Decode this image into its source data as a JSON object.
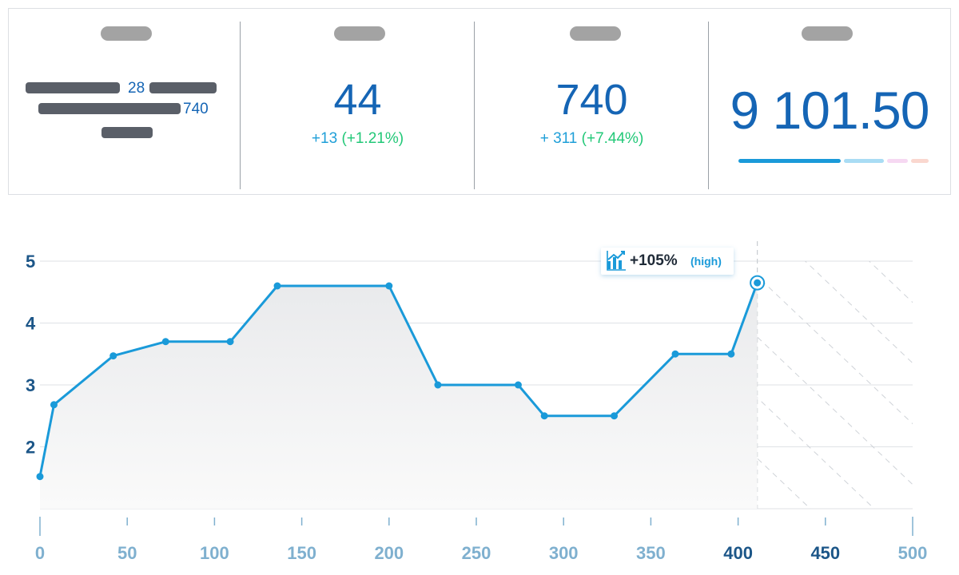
{
  "stats": {
    "funnel": {
      "value_a": "28",
      "value_b": "740"
    },
    "metric_2": {
      "value": "44",
      "delta_abs": "+13",
      "delta_pct": "(+1.21%)"
    },
    "metric_3": {
      "value": "740",
      "delta_abs": "+ 311",
      "delta_pct": "(+7.44%)"
    },
    "metric_4": {
      "value": "9 101.50"
    }
  },
  "callout": {
    "change": "+105%",
    "tag": "(high)",
    "icon": "chart-up-icon"
  },
  "colors": {
    "line": "#1a9ad9",
    "axis_dark": "#1c5688",
    "axis_light": "#7fb0cf",
    "value_blue": "#1565b5",
    "positive": "#22c878"
  },
  "chart_data": {
    "type": "area",
    "x": [
      0,
      8,
      42,
      72,
      109,
      136,
      200,
      228,
      274,
      289,
      329,
      364,
      396,
      411
    ],
    "y": [
      1.52,
      2.68,
      3.47,
      3.7,
      3.7,
      4.6,
      4.6,
      3.0,
      3.0,
      2.5,
      2.5,
      3.5,
      3.5,
      4.65
    ],
    "xlim": [
      0,
      500
    ],
    "ylim": [
      1,
      5
    ],
    "xticks": [
      0,
      50,
      100,
      150,
      200,
      250,
      300,
      350,
      400,
      450,
      500
    ],
    "xtick_labels": [
      "0",
      "50",
      "100",
      "150",
      "200",
      "250",
      "300",
      "350",
      "400",
      "450",
      "500"
    ],
    "yticks": [
      2,
      3,
      4,
      5
    ],
    "ytick_labels": [
      "2",
      "3",
      "4",
      "5"
    ],
    "emphasized_xticks": [
      400,
      450
    ],
    "highlight_point": {
      "x": 411,
      "y": 4.65
    },
    "forecast_region": [
      411,
      500
    ],
    "grid": true
  }
}
